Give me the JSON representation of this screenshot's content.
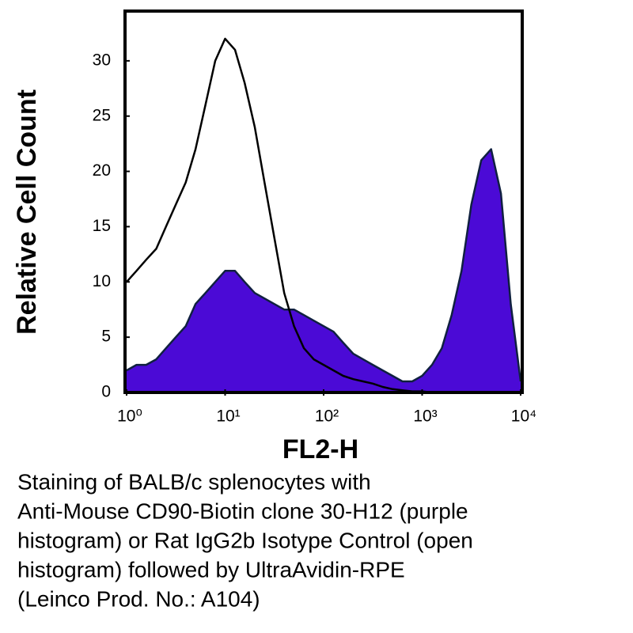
{
  "chart_data": {
    "type": "histogram-overlay",
    "xlabel": "FL2-H",
    "ylabel": "Relative Cell Count",
    "log_x": true,
    "xlim": [
      1,
      10000
    ],
    "xticks": [
      {
        "value": 1,
        "label": "10⁰"
      },
      {
        "value": 10,
        "label": "10¹"
      },
      {
        "value": 100,
        "label": "10²"
      },
      {
        "value": 1000,
        "label": "10³"
      },
      {
        "value": 10000,
        "label": "10⁴"
      }
    ],
    "ylim": [
      0,
      34.5
    ],
    "yticks": [
      0,
      5,
      10,
      15,
      20,
      25,
      30
    ],
    "x": [
      1,
      1.26,
      1.58,
      2,
      2.51,
      3.16,
      3.98,
      5.01,
      6.31,
      7.94,
      10,
      12.6,
      15.8,
      20,
      25.1,
      31.6,
      39.8,
      50.1,
      63.1,
      79.4,
      100,
      126,
      158,
      200,
      251,
      316,
      398,
      501,
      631,
      794,
      1000,
      1259,
      1585,
      1995,
      2512,
      3162,
      3981,
      5012,
      6310,
      7943,
      10000
    ],
    "series": [
      {
        "name": "Anti-Mouse CD90-Biotin",
        "color": "#4b0ad6",
        "filled": true,
        "values": [
          2,
          2.5,
          2.5,
          3,
          4,
          5,
          6,
          8,
          9,
          10,
          11,
          11,
          10,
          9,
          8.5,
          8,
          7.5,
          7.5,
          7,
          6.5,
          6,
          5.5,
          4.5,
          3.5,
          3,
          2.5,
          2,
          1.5,
          1,
          1,
          1.5,
          2.5,
          4,
          7,
          11,
          17,
          21,
          22,
          18,
          8,
          1
        ]
      },
      {
        "name": "Rat IgG2b Isotype Control",
        "color": "#000000",
        "filled": false,
        "values": [
          10,
          11,
          12,
          13,
          15,
          17,
          19,
          22,
          26,
          30,
          32,
          31,
          28,
          24,
          19,
          14,
          9,
          6,
          4,
          3,
          2.5,
          2,
          1.5,
          1.2,
          1,
          0.8,
          0.5,
          0.3,
          0.2,
          0.1,
          0.1,
          0,
          0,
          0,
          0,
          0,
          0,
          0,
          0,
          0,
          0
        ]
      }
    ],
    "caption": [
      "Staining of BALB/c splenocytes with",
      "Anti-Mouse CD90-Biotin clone 30-H12 (purple",
      "histogram) or Rat IgG2b Isotype Control (open",
      "histogram) followed by UltraAvidin-RPE",
      "(Leinco Prod. No.: A104)"
    ]
  }
}
